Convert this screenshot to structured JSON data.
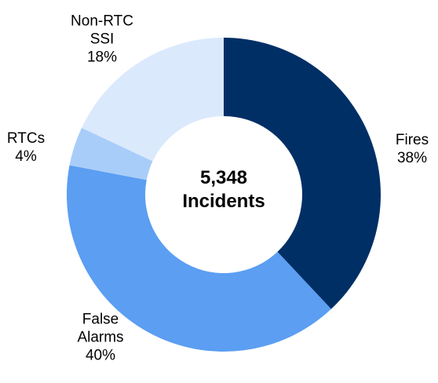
{
  "chart_data": {
    "type": "donut",
    "center_text": "5,348 Incidents",
    "categories": [
      "Fires",
      "False Alarms",
      "RTCs",
      "Non-RTC SSI"
    ],
    "values": [
      38,
      40,
      4,
      18
    ],
    "value_labels": [
      "38%",
      "40%",
      "4%",
      "18%"
    ],
    "colors": [
      "#002f66",
      "#5b9ef2",
      "#a9cdf9",
      "#dbe9fc"
    ]
  }
}
